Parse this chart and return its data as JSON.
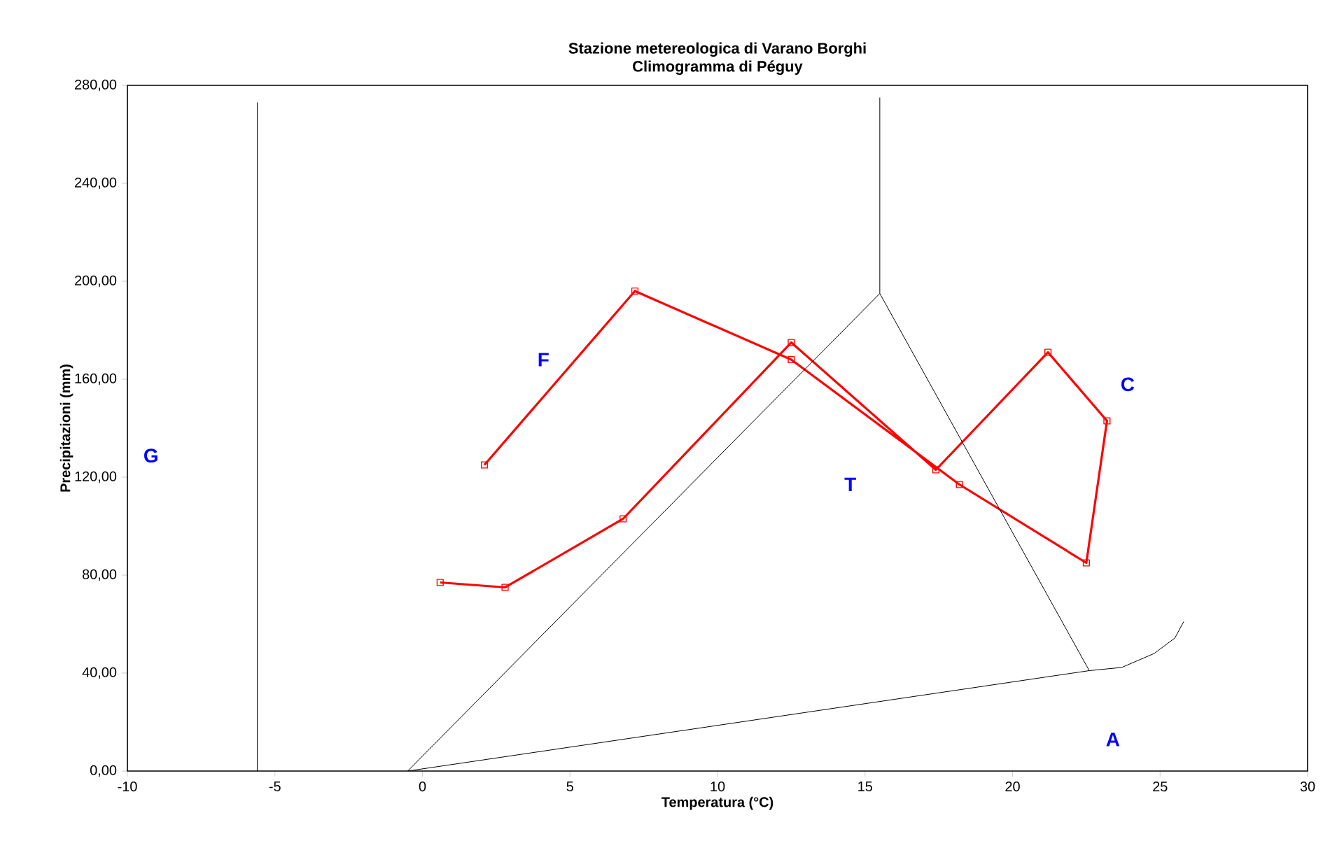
{
  "chart_data": {
    "type": "line",
    "title": "Stazione metereologica di Varano Borghi",
    "subtitle": "Climogramma di Péguy",
    "xlabel": "Temperatura (°C)",
    "ylabel": "Precipitazioni (mm)",
    "xlim": [
      -10,
      30
    ],
    "ylim": [
      0,
      280
    ],
    "xticks": [
      -10,
      -5,
      0,
      5,
      10,
      15,
      20,
      25,
      30
    ],
    "yticks": [
      {
        "value": 0,
        "label": "0,00"
      },
      {
        "value": 40,
        "label": "40,00"
      },
      {
        "value": 80,
        "label": "80,00"
      },
      {
        "value": 120,
        "label": "120,00"
      },
      {
        "value": 160,
        "label": "160,00"
      },
      {
        "value": 200,
        "label": "200,00"
      },
      {
        "value": 240,
        "label": "240,00"
      },
      {
        "value": 280,
        "label": "280,00"
      }
    ],
    "grid": false,
    "line_style": "solid",
    "series": [
      {
        "color": "#ff0000",
        "marker": "square",
        "x": [
          0.6,
          2.8,
          6.8,
          12.5,
          17.4,
          21.2,
          23.2,
          22.5,
          18.2,
          12.5,
          7.2,
          2.1
        ],
        "values": [
          77,
          75,
          103,
          175,
          123,
          171,
          143,
          85,
          117,
          168,
          196,
          125
        ]
      },
      {
        "color": "#000000",
        "marker": "none",
        "x": [
          -5.6,
          -5.6
        ],
        "values": [
          0,
          273
        ]
      },
      {
        "color": "#000000",
        "marker": "none",
        "x": [
          15.5,
          15.5
        ],
        "values": [
          195,
          275
        ]
      },
      {
        "color": "#000000",
        "marker": "none",
        "x": [
          -0.5,
          15.5
        ],
        "values": [
          0,
          195
        ]
      },
      {
        "color": "#000000",
        "marker": "none",
        "x": [
          15.5,
          22.6
        ],
        "values": [
          195,
          41
        ]
      },
      {
        "color": "#000000",
        "marker": "none",
        "x": [
          -0.5,
          22.6,
          23.7,
          24.8,
          25.5,
          25.8
        ],
        "values": [
          0,
          41,
          42.3,
          48,
          54.3,
          61
        ]
      }
    ],
    "annotations": [
      "G",
      "F",
      "T",
      "C",
      "A"
    ]
  }
}
